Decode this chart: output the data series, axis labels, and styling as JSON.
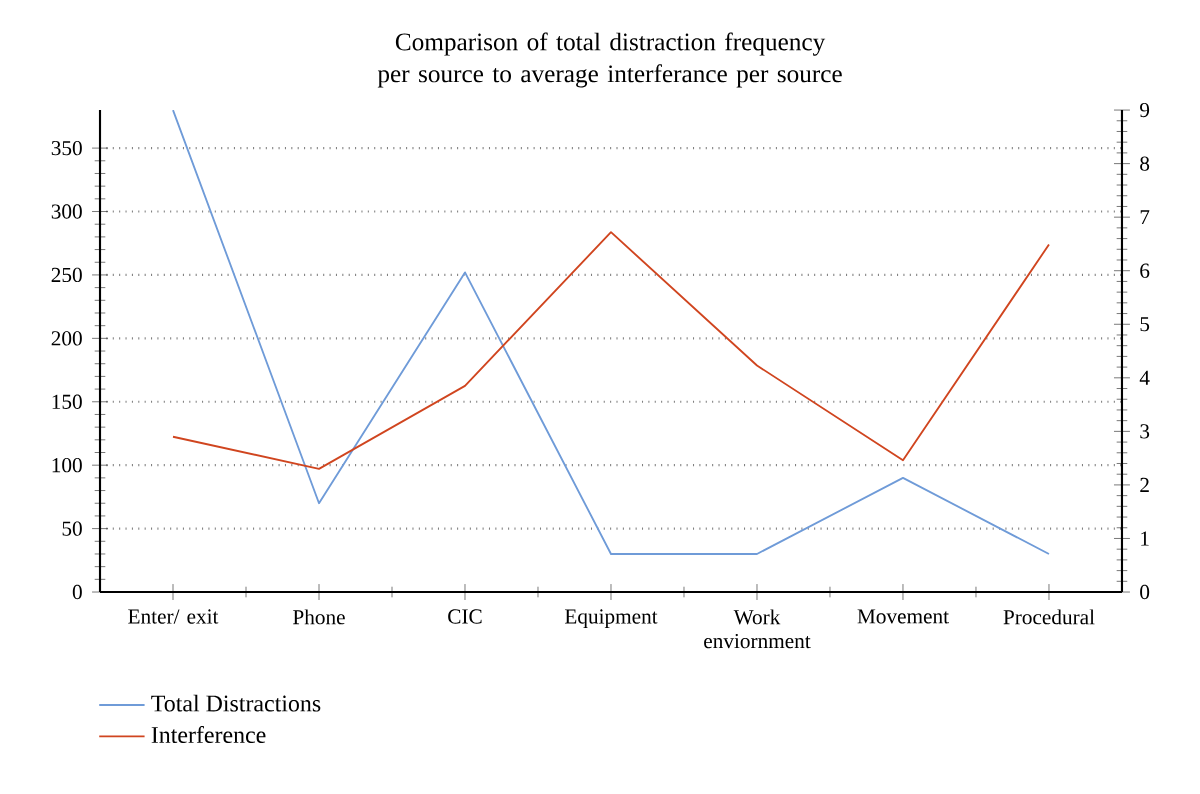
{
  "chart_data": {
    "type": "line",
    "title": "Comparison of total distraction frequency per source to average interferance per source",
    "categories": [
      "Enter/ exit",
      "Phone",
      "CIC",
      "Equipment",
      "Work enviornment",
      "Movement",
      "Procedural"
    ],
    "series": [
      {
        "name": "Total Distractions",
        "color": "#6f9bd8",
        "values": [
          380,
          70,
          252,
          30,
          30,
          90,
          30
        ]
      },
      {
        "name": "Interference",
        "color": "#d0451f",
        "axis": "y2",
        "values": [
          2.9,
          2.3,
          3.85,
          6.72,
          4.23,
          2.46,
          6.49
        ]
      }
    ],
    "ylim": [
      0,
      380
    ],
    "yticks": [
      0,
      50,
      100,
      150,
      200,
      250,
      300,
      350
    ],
    "y2lim": [
      0,
      9
    ],
    "y2ticks": [
      0,
      1,
      2,
      3,
      4,
      5,
      6,
      7,
      8,
      9
    ],
    "grid": "y",
    "legend": "bottom left",
    "marker": "none",
    "line_style": "solid"
  }
}
